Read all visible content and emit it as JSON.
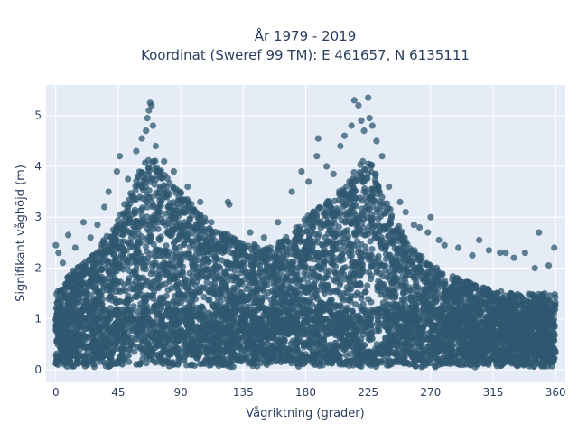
{
  "chart_data": {
    "type": "scatter",
    "title_line1": "År 1979 - 2019",
    "title_line2": "Koordinat (Sweref 99 TM): E 461657, N 6135111",
    "xlabel": "Vågriktning (grader)",
    "ylabel": "Signifikant våghöjd (m)",
    "xlim": [
      -7,
      367
    ],
    "ylim": [
      -0.25,
      5.6
    ],
    "xticks": [
      0,
      45,
      90,
      135,
      180,
      225,
      270,
      315,
      360
    ],
    "xtick_labels": [
      "0",
      "45",
      "90",
      "135",
      "180",
      "225",
      "270",
      "315",
      "360"
    ],
    "yticks": [
      0,
      1,
      2,
      3,
      4,
      5
    ],
    "ytick_labels": [
      "0",
      "1",
      "2",
      "3",
      "4",
      "5"
    ],
    "grid": true,
    "marker_color": "#2f5870",
    "background_color": "#e5ecf6",
    "upper_envelope": {
      "x": [
        0,
        10,
        20,
        30,
        40,
        45,
        50,
        55,
        60,
        65,
        70,
        75,
        80,
        85,
        90,
        100,
        110,
        120,
        130,
        140,
        150,
        160,
        170,
        180,
        190,
        200,
        210,
        215,
        220,
        225,
        230,
        235,
        240,
        250,
        260,
        270,
        280,
        290,
        300,
        310,
        320,
        330,
        340,
        350,
        360
      ],
      "y": [
        1.5,
        1.9,
        2.1,
        2.4,
        2.8,
        3.0,
        3.3,
        3.6,
        3.9,
        4.1,
        4.2,
        4.0,
        3.8,
        3.7,
        3.5,
        3.2,
        2.9,
        2.7,
        2.6,
        2.5,
        2.4,
        2.5,
        2.7,
        3.0,
        3.2,
        3.4,
        3.7,
        3.9,
        4.1,
        4.2,
        3.9,
        3.6,
        3.2,
        2.7,
        2.3,
        2.1,
        1.9,
        1.8,
        1.7,
        1.6,
        1.55,
        1.5,
        1.5,
        1.5,
        1.5
      ]
    },
    "outliers": [
      [
        0,
        2.45
      ],
      [
        2,
        2.3
      ],
      [
        5,
        2.1
      ],
      [
        9,
        2.65
      ],
      [
        14,
        2.4
      ],
      [
        20,
        2.9
      ],
      [
        25,
        2.6
      ],
      [
        30,
        2.85
      ],
      [
        35,
        3.2
      ],
      [
        38,
        3.5
      ],
      [
        44,
        3.9
      ],
      [
        46,
        4.2
      ],
      [
        52,
        3.75
      ],
      [
        58,
        4.3
      ],
      [
        62,
        4.55
      ],
      [
        65,
        4.7
      ],
      [
        66,
        4.95
      ],
      [
        67,
        5.1
      ],
      [
        68,
        5.25
      ],
      [
        69,
        5.2
      ],
      [
        70,
        4.8
      ],
      [
        72,
        4.4
      ],
      [
        78,
        4.1
      ],
      [
        85,
        3.9
      ],
      [
        95,
        3.6
      ],
      [
        104,
        3.3
      ],
      [
        112,
        2.9
      ],
      [
        124,
        3.3
      ],
      [
        125,
        3.25
      ],
      [
        140,
        2.7
      ],
      [
        150,
        2.6
      ],
      [
        160,
        2.9
      ],
      [
        170,
        3.5
      ],
      [
        177,
        3.9
      ],
      [
        182,
        3.7
      ],
      [
        188,
        4.2
      ],
      [
        189,
        4.55
      ],
      [
        195,
        4.0
      ],
      [
        200,
        3.85
      ],
      [
        205,
        4.4
      ],
      [
        208,
        4.6
      ],
      [
        213,
        4.8
      ],
      [
        215,
        5.3
      ],
      [
        218,
        5.2
      ],
      [
        220,
        4.9
      ],
      [
        222,
        4.7
      ],
      [
        225,
        5.35
      ],
      [
        226,
        4.95
      ],
      [
        228,
        4.8
      ],
      [
        231,
        4.5
      ],
      [
        235,
        4.2
      ],
      [
        240,
        3.6
      ],
      [
        248,
        3.3
      ],
      [
        252,
        3.1
      ],
      [
        258,
        2.85
      ],
      [
        262,
        2.8
      ],
      [
        268,
        2.7
      ],
      [
        270,
        3.0
      ],
      [
        276,
        2.55
      ],
      [
        280,
        2.45
      ],
      [
        290,
        2.4
      ],
      [
        300,
        2.25
      ],
      [
        305,
        2.55
      ],
      [
        312,
        2.35
      ],
      [
        320,
        2.3
      ],
      [
        324,
        2.3
      ],
      [
        330,
        2.2
      ],
      [
        338,
        2.3
      ],
      [
        345,
        2.0
      ],
      [
        348,
        2.7
      ],
      [
        355,
        2.05
      ],
      [
        359,
        2.4
      ]
    ]
  }
}
